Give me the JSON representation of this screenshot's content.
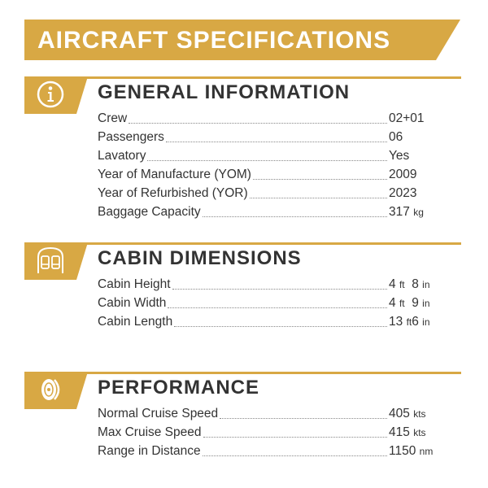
{
  "title": "AIRCRAFT SPECIFICATIONS",
  "colors": {
    "accent": "#d8a844",
    "text": "#333333",
    "background": "#ffffff"
  },
  "sections": [
    {
      "icon": "info-icon",
      "heading": "GENERAL INFORMATION",
      "rows": [
        {
          "label": "Crew",
          "value": "02+01"
        },
        {
          "label": "Passengers",
          "value": "06"
        },
        {
          "label": "Lavatory",
          "value": "Yes"
        },
        {
          "label": "Year of Manufacture (YOM)",
          "value": "2009"
        },
        {
          "label": "Year of Refurbished (YOR)",
          "value": "2023"
        },
        {
          "label": "Baggage Capacity",
          "value": "317",
          "unit": "kg"
        }
      ]
    },
    {
      "icon": "cabin-seats-icon",
      "heading": "CABIN DIMENSIONS",
      "rows": [
        {
          "label": "Cabin Height",
          "ft": "4",
          "ft_unit": "ft",
          "in": "8",
          "in_unit": "in"
        },
        {
          "label": "Cabin Width",
          "ft": "4",
          "ft_unit": "ft",
          "in": "9",
          "in_unit": "in"
        },
        {
          "label": "Cabin Length",
          "ft": "13",
          "ft_unit": "ft",
          "in": "6",
          "in_unit": "in"
        }
      ]
    },
    {
      "icon": "engine-icon",
      "heading": "PERFORMANCE",
      "rows": [
        {
          "label": "Normal Cruise Speed",
          "value": "405",
          "unit": "kts"
        },
        {
          "label": "Max Cruise Speed",
          "value": "415",
          "unit": "kts"
        },
        {
          "label": "Range in Distance",
          "value": "1150",
          "unit": "nm"
        }
      ]
    }
  ]
}
